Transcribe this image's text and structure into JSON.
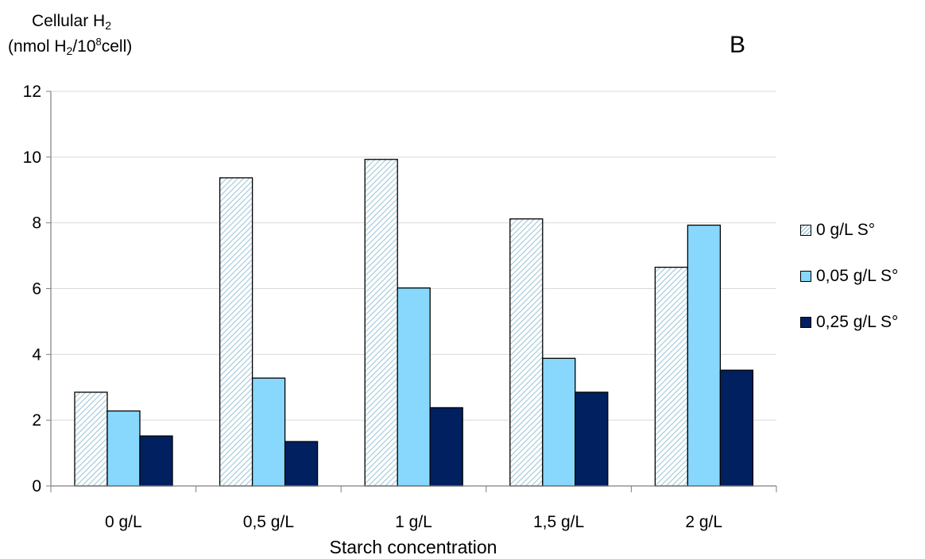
{
  "panel_letter": "B",
  "ylabel": {
    "line1_main": "Cellular H",
    "line1_sub": "2",
    "line2_a": "(nmol H",
    "line2_sub": "2",
    "line2_b": "/10",
    "line2_sup": "8",
    "line2_c": "cell)"
  },
  "colors": {
    "hatch_line": "#9fc7d8",
    "light_blue": "#87d8fc",
    "navy": "#002060",
    "grid": "#d9d9d9"
  },
  "chart_data": {
    "type": "bar",
    "xlabel": "Starch concentration",
    "categories": [
      "0 g/L",
      "0,5 g/L",
      "1 g/L",
      "1,5 g/L",
      "2 g/L"
    ],
    "ylim": [
      0,
      12
    ],
    "yticks": [
      0,
      2,
      4,
      6,
      8,
      10,
      12
    ],
    "grid": true,
    "legend_position": "right",
    "series": [
      {
        "name": "0 g/L S°",
        "style": "hatched",
        "values": [
          2.85,
          9.37,
          9.93,
          8.12,
          6.65
        ]
      },
      {
        "name": "0,05 g/L S°",
        "style": "light-blue",
        "values": [
          2.28,
          3.28,
          6.02,
          3.88,
          7.93
        ]
      },
      {
        "name": "0,25 g/L S°",
        "style": "navy",
        "values": [
          1.52,
          1.35,
          2.38,
          2.85,
          3.52
        ]
      }
    ]
  }
}
